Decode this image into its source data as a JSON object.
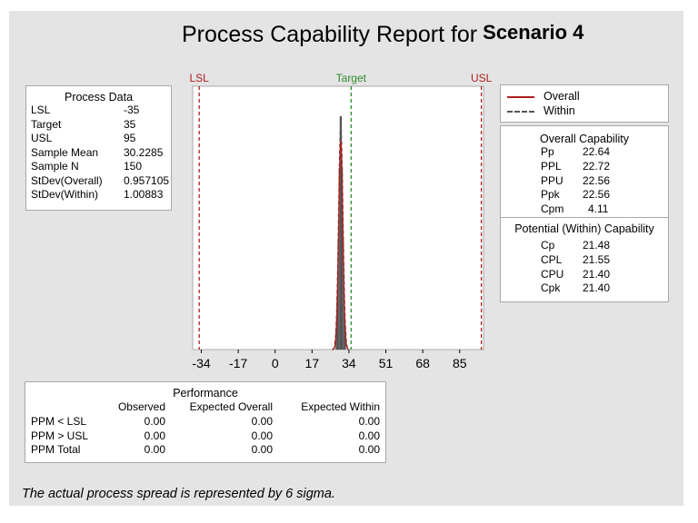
{
  "title": "Process Capability Report for",
  "scenario": "Scenario 4",
  "footnote": "The actual process spread is represented by 6 sigma.",
  "process_data": {
    "header": "Process Data",
    "rows": [
      {
        "label": "LSL",
        "value": "-35"
      },
      {
        "label": "Target",
        "value": "35"
      },
      {
        "label": "USL",
        "value": "95"
      },
      {
        "label": "Sample Mean",
        "value": "30.2285"
      },
      {
        "label": "Sample N",
        "value": "150"
      },
      {
        "label": "StDev(Overall)",
        "value": "0.957105"
      },
      {
        "label": "StDev(Within)",
        "value": "1.00883"
      }
    ]
  },
  "legend": {
    "overall": "Overall",
    "within": "Within",
    "colors": {
      "overall": "#b01e1e",
      "within": "#555555"
    }
  },
  "overall_capability": {
    "header": "Overall Capability",
    "rows": [
      {
        "label": "Pp",
        "value": "22.64"
      },
      {
        "label": "PPL",
        "value": "22.72"
      },
      {
        "label": "PPU",
        "value": "22.56"
      },
      {
        "label": "Ppk",
        "value": "22.56"
      },
      {
        "label": "Cpm",
        "value": "4.11"
      }
    ]
  },
  "within_capability": {
    "header": "Potential (Within) Capability",
    "rows": [
      {
        "label": "Cp",
        "value": "21.48"
      },
      {
        "label": "CPL",
        "value": "21.55"
      },
      {
        "label": "CPU",
        "value": "21.40"
      },
      {
        "label": "Cpk",
        "value": "21.40"
      }
    ]
  },
  "performance": {
    "header": "Performance",
    "columns": [
      "",
      "Observed",
      "Expected Overall",
      "Expected Within"
    ],
    "rows": [
      {
        "label": "PPM < LSL",
        "observed": "0.00",
        "expected_overall": "0.00",
        "expected_within": "0.00"
      },
      {
        "label": "PPM > USL",
        "observed": "0.00",
        "expected_overall": "0.00",
        "expected_within": "0.00"
      },
      {
        "label": "PPM Total",
        "observed": "0.00",
        "expected_overall": "0.00",
        "expected_within": "0.00"
      }
    ]
  },
  "chart_data": {
    "type": "histogram",
    "x_ticks": [
      -34,
      -17,
      0,
      17,
      34,
      51,
      68,
      85
    ],
    "xlim": [
      -38,
      96
    ],
    "ref_lines": [
      {
        "label": "LSL",
        "value": -35,
        "color": "#b01e1e"
      },
      {
        "label": "Target",
        "value": 35,
        "color": "#2e8b2e"
      },
      {
        "label": "USL",
        "value": 95,
        "color": "#b01e1e"
      }
    ],
    "mean": 30.2285,
    "stdev_overall": 0.957105,
    "stdev_within": 1.00883,
    "histogram_color": "#505050",
    "grid": false
  }
}
